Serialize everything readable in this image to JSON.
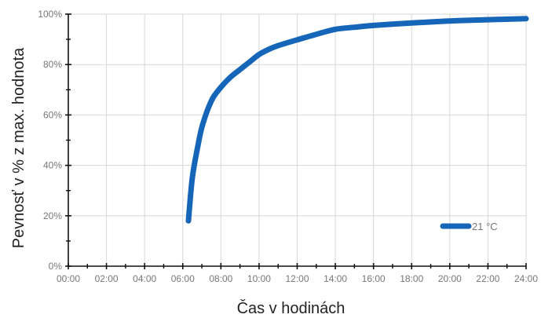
{
  "chart_data": {
    "type": "line",
    "title": "",
    "xlabel": "Čas v hodinách",
    "ylabel": "Pevnosť v % z max. hodnota",
    "x_ticks": [
      "00:00",
      "02:00",
      "04:00",
      "06:00",
      "08:00",
      "10:00",
      "12:00",
      "14:00",
      "16:00",
      "18:00",
      "20:00",
      "22:00",
      "24:00"
    ],
    "y_ticks": [
      "0%",
      "20%",
      "40%",
      "60%",
      "80%",
      "100%"
    ],
    "xlim": [
      0,
      24
    ],
    "ylim": [
      0,
      100
    ],
    "grid": true,
    "legend_position": "bottom-right",
    "series": [
      {
        "name": "21 °C",
        "color": "#1565b8",
        "x": [
          6.3,
          6.5,
          6.8,
          7.0,
          7.3,
          7.6,
          8.0,
          8.5,
          9.0,
          9.5,
          10.0,
          10.5,
          11.0,
          12.0,
          13.0,
          14.0,
          15.0,
          16.0,
          18.0,
          20.0,
          22.0,
          24.0
        ],
        "y": [
          18,
          35,
          48,
          55,
          62,
          67,
          71,
          75,
          78,
          81,
          84,
          86,
          87.5,
          89.8,
          92,
          94,
          94.8,
          95.5,
          96.5,
          97.3,
          97.8,
          98.2
        ]
      }
    ]
  }
}
